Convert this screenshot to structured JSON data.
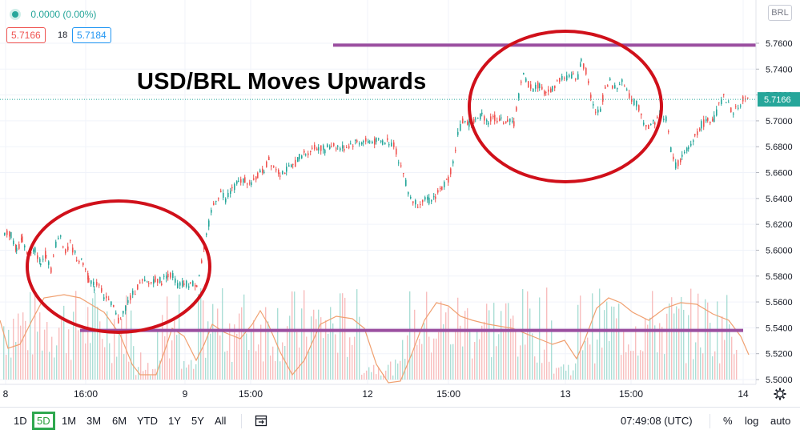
{
  "header": {
    "change": "0.0000 (0.00%)",
    "bid": "5.7166",
    "spread": "18",
    "ask": "5.7184",
    "currency": "BRL"
  },
  "annotation": {
    "title": "USD/BRL Moves Upwards"
  },
  "toolbar": {
    "ranges": [
      "1D",
      "5D",
      "1M",
      "3M",
      "6M",
      "YTD",
      "1Y",
      "5Y",
      "All"
    ],
    "active_range": "5D",
    "time": "07:49:08 (UTC)",
    "percent": "%",
    "log": "log",
    "auto": "auto"
  },
  "colors": {
    "up": "#26a69a",
    "down": "#ef5350",
    "overlay_line": "#9b4fa0",
    "circle": "#d0101a",
    "volume_ma": "#f0a070",
    "last_price_bg": "#26a69a"
  },
  "chart_data": {
    "type": "line",
    "series": [
      {
        "values": [
          [
            0,
            5.613
          ],
          [
            8,
            5.612
          ],
          [
            15,
            5.6
          ],
          [
            22,
            5.608
          ],
          [
            30,
            5.595
          ],
          [
            38,
            5.6
          ],
          [
            45,
            5.59
          ],
          [
            52,
            5.598
          ],
          [
            58,
            5.585
          ],
          [
            64,
            5.605
          ],
          [
            70,
            5.612
          ],
          [
            76,
            5.598
          ],
          [
            82,
            5.605
          ],
          [
            90,
            5.594
          ],
          [
            98,
            5.59
          ],
          [
            105,
            5.578
          ],
          [
            112,
            5.572
          ],
          [
            118,
            5.575
          ],
          [
            124,
            5.565
          ],
          [
            130,
            5.56
          ],
          [
            136,
            5.555
          ],
          [
            142,
            5.545
          ],
          [
            148,
            5.552
          ],
          [
            154,
            5.56
          ],
          [
            160,
            5.566
          ],
          [
            166,
            5.572
          ],
          [
            172,
            5.575
          ],
          [
            180,
            5.574
          ],
          [
            188,
            5.578
          ],
          [
            196,
            5.576
          ],
          [
            204,
            5.582
          ],
          [
            210,
            5.58
          ],
          [
            216,
            5.573
          ],
          [
            224,
            5.574
          ],
          [
            232,
            5.574
          ],
          [
            240,
            5.574
          ],
          [
            246,
            5.59
          ],
          [
            252,
            5.61
          ],
          [
            258,
            5.63
          ],
          [
            264,
            5.64
          ],
          [
            270,
            5.645
          ],
          [
            276,
            5.64
          ],
          [
            284,
            5.648
          ],
          [
            292,
            5.652
          ],
          [
            300,
            5.655
          ],
          [
            308,
            5.65
          ],
          [
            316,
            5.658
          ],
          [
            324,
            5.662
          ],
          [
            330,
            5.67
          ],
          [
            336,
            5.665
          ],
          [
            344,
            5.66
          ],
          [
            352,
            5.662
          ],
          [
            360,
            5.665
          ],
          [
            368,
            5.672
          ],
          [
            376,
            5.675
          ],
          [
            384,
            5.678
          ],
          [
            392,
            5.68
          ],
          [
            400,
            5.678
          ],
          [
            408,
            5.682
          ],
          [
            416,
            5.68
          ],
          [
            424,
            5.679
          ],
          [
            432,
            5.682
          ],
          [
            440,
            5.684
          ],
          [
            448,
            5.684
          ],
          [
            456,
            5.684
          ],
          [
            464,
            5.684
          ],
          [
            472,
            5.684
          ],
          [
            480,
            5.684
          ],
          [
            486,
            5.682
          ],
          [
            492,
            5.67
          ],
          [
            498,
            5.66
          ],
          [
            504,
            5.645
          ],
          [
            510,
            5.638
          ],
          [
            516,
            5.636
          ],
          [
            522,
            5.64
          ],
          [
            530,
            5.638
          ],
          [
            538,
            5.642
          ],
          [
            546,
            5.648
          ],
          [
            554,
            5.655
          ],
          [
            560,
            5.668
          ],
          [
            566,
            5.69
          ],
          [
            572,
            5.7
          ],
          [
            580,
            5.698
          ],
          [
            588,
            5.7
          ],
          [
            596,
            5.705
          ],
          [
            604,
            5.7
          ],
          [
            612,
            5.702
          ],
          [
            620,
            5.7
          ],
          [
            628,
            5.7
          ],
          [
            636,
            5.698
          ],
          [
            642,
            5.72
          ],
          [
            648,
            5.735
          ],
          [
            654,
            5.728
          ],
          [
            660,
            5.725
          ],
          [
            668,
            5.728
          ],
          [
            676,
            5.72
          ],
          [
            684,
            5.725
          ],
          [
            690,
            5.73
          ],
          [
            696,
            5.734
          ],
          [
            702,
            5.734
          ],
          [
            710,
            5.734
          ],
          [
            716,
            5.734
          ],
          [
            720,
            5.748
          ],
          [
            726,
            5.738
          ],
          [
            732,
            5.72
          ],
          [
            738,
            5.705
          ],
          [
            744,
            5.71
          ],
          [
            750,
            5.725
          ],
          [
            756,
            5.73
          ],
          [
            762,
            5.725
          ],
          [
            768,
            5.73
          ],
          [
            774,
            5.728
          ],
          [
            780,
            5.72
          ],
          [
            786,
            5.715
          ],
          [
            792,
            5.71
          ],
          [
            798,
            5.7
          ],
          [
            804,
            5.695
          ],
          [
            812,
            5.7
          ],
          [
            820,
            5.705
          ],
          [
            826,
            5.702
          ],
          [
            832,
            5.678
          ],
          [
            838,
            5.665
          ],
          [
            846,
            5.672
          ],
          [
            854,
            5.678
          ],
          [
            862,
            5.688
          ],
          [
            870,
            5.697
          ],
          [
            878,
            5.7
          ],
          [
            886,
            5.702
          ],
          [
            892,
            5.712
          ],
          [
            898,
            5.718
          ],
          [
            904,
            5.712
          ],
          [
            910,
            5.705
          ],
          [
            916,
            5.712
          ],
          [
            922,
            5.716
          ],
          [
            930,
            5.717
          ]
        ]
      }
    ],
    "x_tick_labels": [
      "8",
      "16:00",
      "9",
      "15:00",
      "12",
      "15:00",
      "13",
      "15:00",
      "14"
    ],
    "y_tick_labels": [
      "5.7600",
      "5.7400",
      "5.7200",
      "5.7000",
      "5.6800",
      "5.6600",
      "5.6400",
      "5.6200",
      "5.6000",
      "5.5800",
      "5.5600",
      "5.5400",
      "5.5200",
      "5.5000"
    ],
    "y_tick_values": [
      5.76,
      5.74,
      5.72,
      5.7,
      5.68,
      5.66,
      5.64,
      5.62,
      5.6,
      5.58,
      5.56,
      5.54,
      5.52,
      5.5
    ],
    "ylim": [
      5.495,
      5.775
    ],
    "last_price": "5.7166",
    "annotations": {
      "upper_line": 5.7585,
      "lower_line": 5.538
    },
    "grid": true
  }
}
